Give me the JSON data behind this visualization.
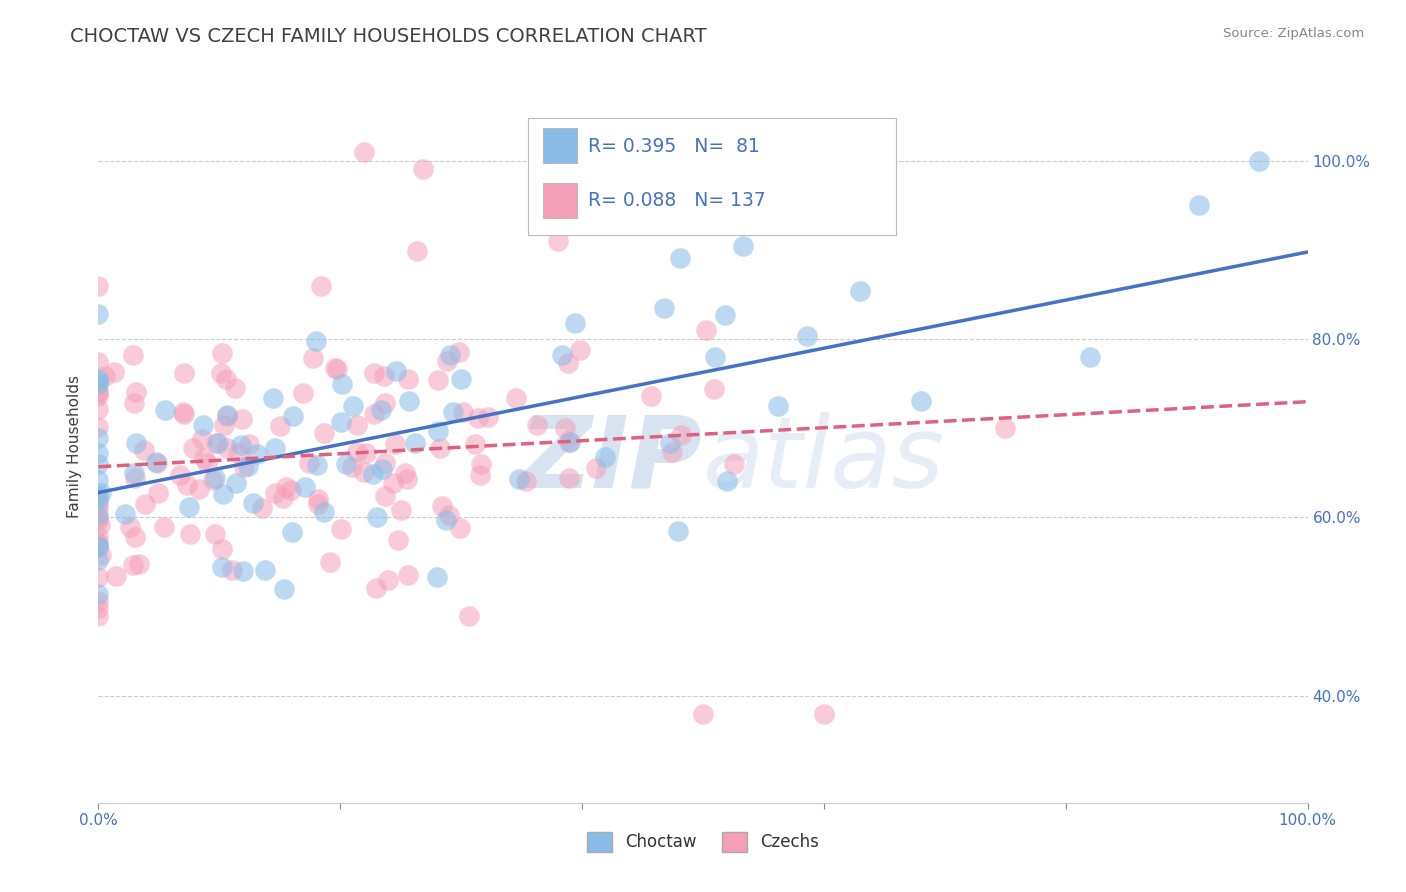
{
  "title": "CHOCTAW VS CZECH FAMILY HOUSEHOLDS CORRELATION CHART",
  "source": "Source: ZipAtlas.com",
  "ylabel": "Family Households",
  "legend_choctaw": "Choctaw",
  "legend_czechs": "Czechs",
  "r_choctaw": 0.395,
  "n_choctaw": 81,
  "r_czechs": 0.088,
  "n_czechs": 137,
  "xlim": [
    0.0,
    1.0
  ],
  "ylim": [
    0.28,
    1.08
  ],
  "x_tick_pos": [
    0.0,
    0.2,
    0.4,
    0.6,
    0.8,
    1.0
  ],
  "x_tick_labels": [
    "0.0%",
    "",
    "",
    "",
    "",
    "100.0%"
  ],
  "y_tick_pos": [
    0.4,
    0.6,
    0.8,
    1.0
  ],
  "y_tick_labels": [
    "40.0%",
    "60.0%",
    "80.0%",
    "100.0%"
  ],
  "color_choctaw": "#88BBE8",
  "color_czechs": "#F5A0B8",
  "line_color_choctaw": "#4472C4",
  "line_color_czechs": "#E06080",
  "background_color": "#FFFFFF",
  "title_color": "#404040",
  "title_fontsize": 14,
  "label_fontsize": 11,
  "tick_fontsize": 11,
  "watermark_color": "#C8D8EC",
  "watermark_fontsize": 72
}
